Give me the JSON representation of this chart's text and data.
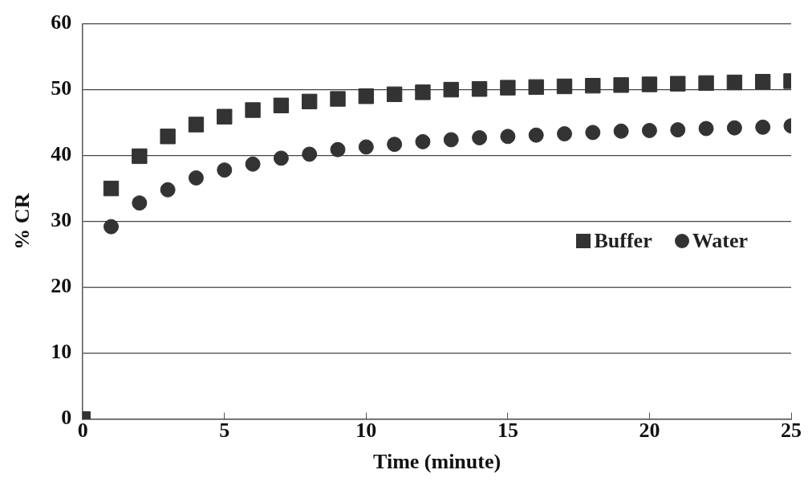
{
  "chart_data": {
    "type": "scatter",
    "xlabel": "Time (minute)",
    "ylabel": "% CR",
    "x": [
      0,
      1,
      2,
      3,
      4,
      5,
      6,
      7,
      8,
      9,
      10,
      11,
      12,
      13,
      14,
      15,
      16,
      17,
      18,
      19,
      20,
      21,
      22,
      23,
      24,
      25
    ],
    "series": [
      {
        "name": "Buffer",
        "color": "#333333",
        "marker": "square",
        "values": [
          0,
          35.0,
          39.9,
          42.9,
          44.7,
          45.9,
          46.9,
          47.6,
          48.2,
          48.6,
          49.0,
          49.3,
          49.6,
          50.0,
          50.1,
          50.3,
          50.4,
          50.5,
          50.6,
          50.7,
          50.8,
          50.9,
          51.0,
          51.1,
          51.2,
          51.3
        ]
      },
      {
        "name": "Water",
        "color": "#333333",
        "marker": "circle",
        "values": [
          0,
          29.2,
          32.8,
          34.8,
          36.6,
          37.8,
          38.7,
          39.6,
          40.2,
          40.9,
          41.3,
          41.7,
          42.1,
          42.4,
          42.7,
          42.9,
          43.1,
          43.3,
          43.5,
          43.7,
          43.8,
          43.9,
          44.1,
          44.2,
          44.3,
          44.5
        ]
      }
    ],
    "xlim": [
      0,
      25
    ],
    "xticks": [
      0,
      5,
      10,
      15,
      20,
      25
    ],
    "ylim": [
      0,
      60
    ],
    "yticks": [
      0,
      10,
      20,
      30,
      40,
      50,
      60
    ],
    "grid": "y",
    "legend": "right"
  }
}
